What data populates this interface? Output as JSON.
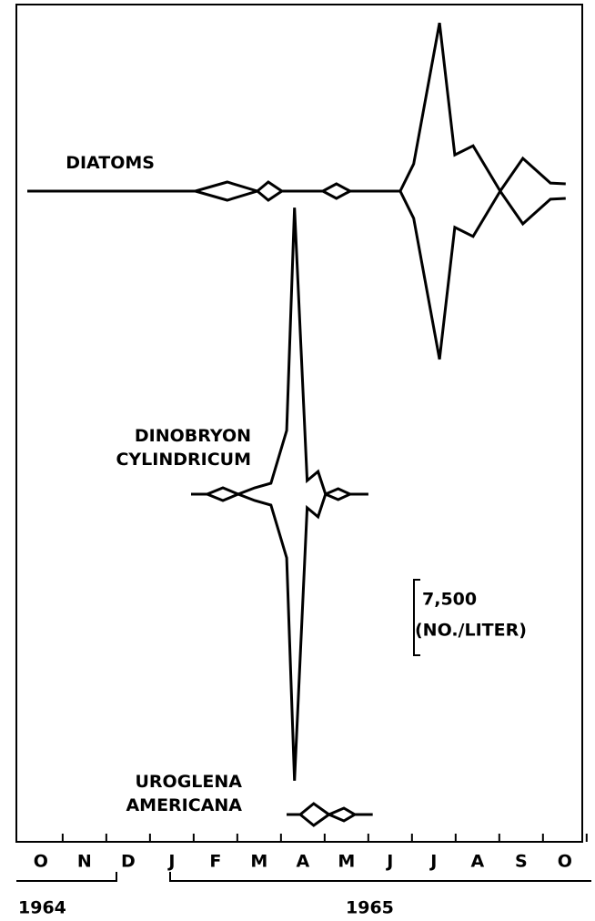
{
  "chart_data": {
    "type": "kite",
    "xlim": [
      -0.56,
      12.4
    ],
    "xticks": [
      {
        "value": 0,
        "label": "O"
      },
      {
        "value": 1,
        "label": "N"
      },
      {
        "value": 2,
        "label": "D"
      },
      {
        "value": 3,
        "label": "J"
      },
      {
        "value": 4,
        "label": "F"
      },
      {
        "value": 5,
        "label": "M"
      },
      {
        "value": 6,
        "label": "A"
      },
      {
        "value": 7,
        "label": "M"
      },
      {
        "value": 8,
        "label": "J"
      },
      {
        "value": 9,
        "label": "J"
      },
      {
        "value": 10,
        "label": "A"
      },
      {
        "value": 11,
        "label": "S"
      },
      {
        "value": 12,
        "label": "O"
      }
    ],
    "years": [
      "1964",
      "1965"
    ],
    "scale": {
      "value": 7500,
      "label": "7,500",
      "unit": "(NO./LITER)"
    },
    "color": "#000000",
    "series": [
      {
        "name": "DIATOMS",
        "x": [
          -0.31,
          3.54,
          4.27,
          4.96,
          5.21,
          5.52,
          6.46,
          6.77,
          7.08,
          8.23,
          8.54,
          9.13,
          9.48,
          9.9,
          10.52,
          11.04,
          11.67,
          12.02
        ],
        "values": [
          0,
          0,
          1800,
          0,
          1800,
          0,
          0,
          1450,
          0,
          0,
          5400,
          33400,
          7200,
          9000,
          0,
          6500,
          1600,
          1450
        ]
      },
      {
        "name": "DINOBRYON CYLINDRICUM",
        "x": [
          3.44,
          3.81,
          4.17,
          4.52,
          4.9,
          5.27,
          5.63,
          5.81,
          6.1,
          6.35,
          6.52,
          6.81,
          7.08,
          7.5
        ],
        "values": [
          0,
          0,
          1270,
          0,
          1270,
          2170,
          12650,
          56900,
          2700,
          4500,
          0,
          1080,
          0,
          0
        ]
      },
      {
        "name": "UROGLENA AMERICANA",
        "x": [
          5.63,
          5.94,
          6.25,
          6.6,
          6.94,
          7.19,
          7.6
        ],
        "values": [
          0,
          0,
          2170,
          0,
          1270,
          0,
          0
        ]
      }
    ]
  }
}
